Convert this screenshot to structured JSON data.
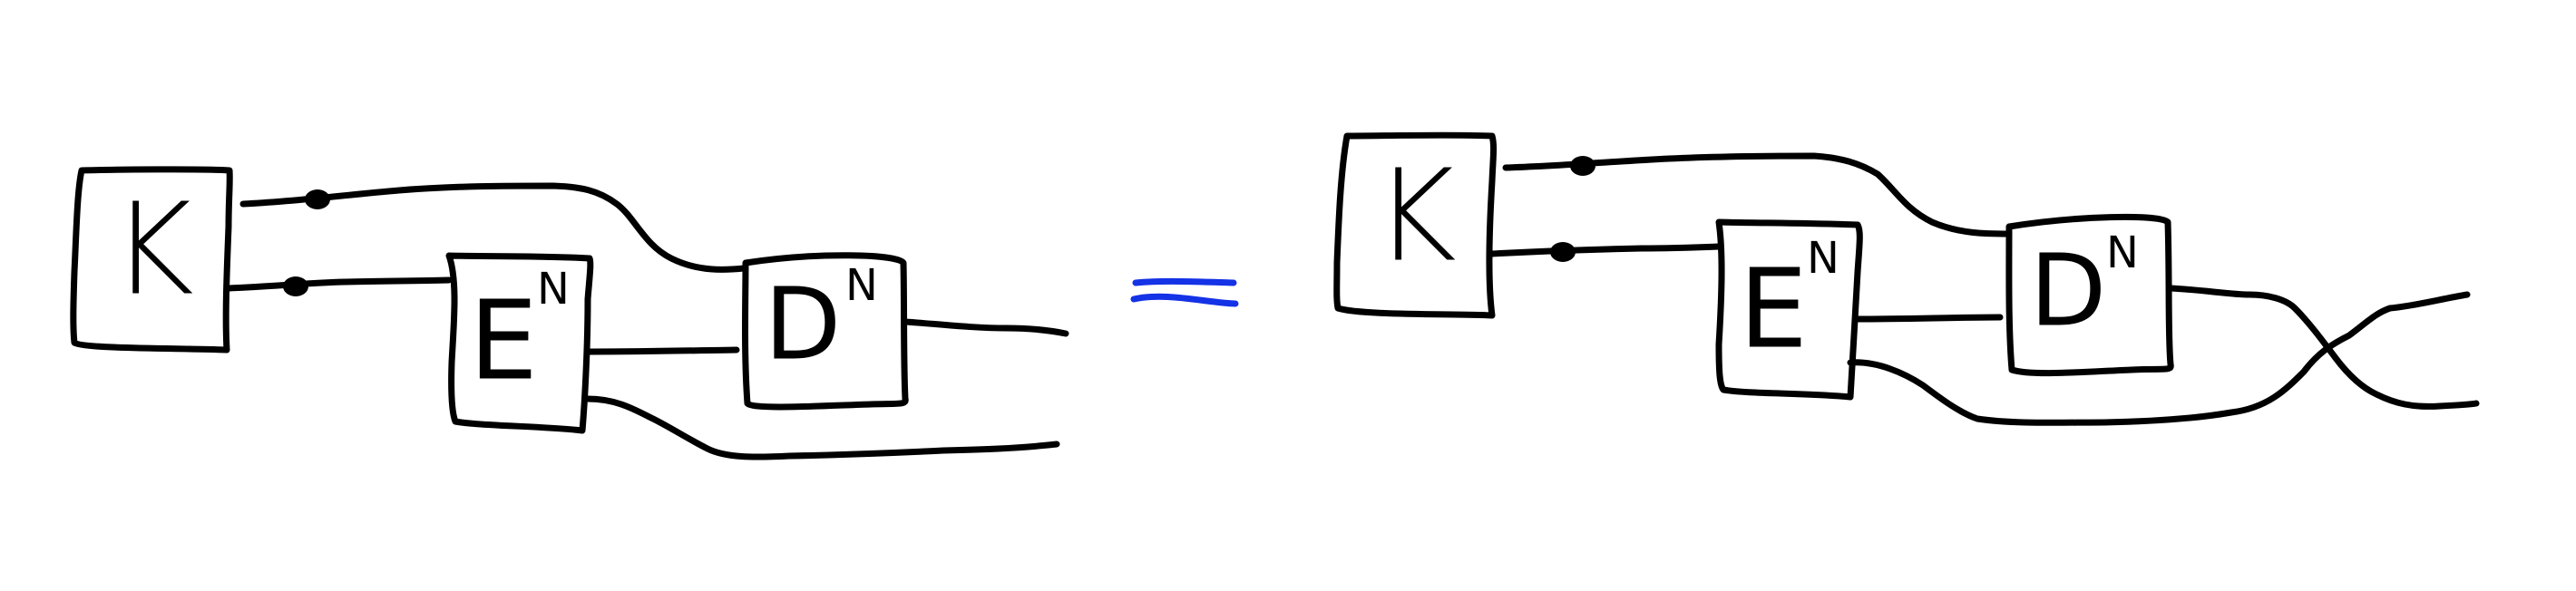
{
  "diagram": {
    "colors": {
      "ink": "#000000",
      "equals": "#1432e6",
      "background": "#ffffff"
    },
    "left": {
      "boxes": {
        "k": "K",
        "e": "E",
        "e_superscript": "N",
        "d": "D",
        "d_superscript": "N"
      }
    },
    "relation": {
      "symbol": "≈"
    },
    "right": {
      "boxes": {
        "k": "K",
        "e": "E",
        "e_superscript": "N",
        "d": "D",
        "d_superscript": "N"
      }
    }
  }
}
